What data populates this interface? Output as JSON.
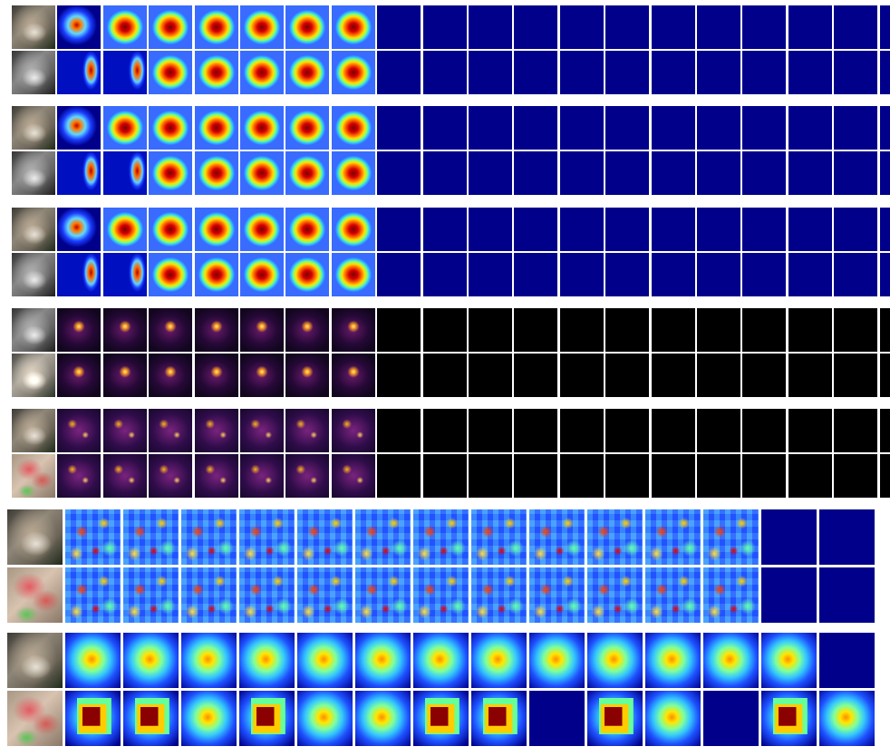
{
  "figure": {
    "background": "#ffffff",
    "colormaps": [
      "jet",
      "inferno"
    ]
  }
}
